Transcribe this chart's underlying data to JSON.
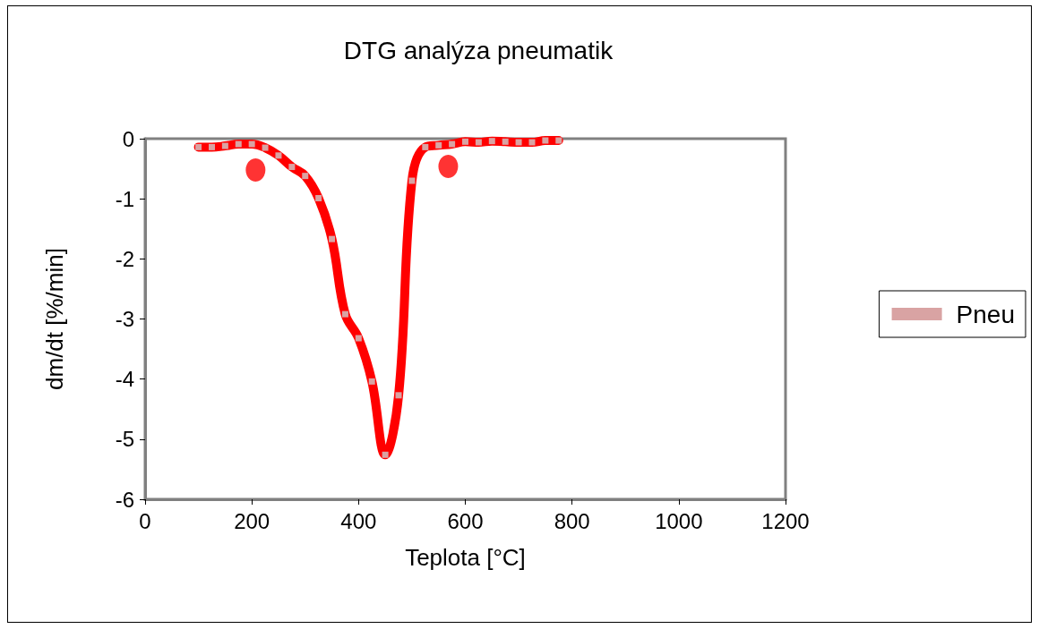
{
  "chart_data": {
    "type": "line",
    "title": "DTG analýza pneumatik",
    "xlabel": "Teplota [°C]",
    "ylabel": "dm/dt [%/min]",
    "xlim": [
      0,
      1200
    ],
    "xticks": [
      0,
      200,
      400,
      600,
      800,
      1000,
      1200
    ],
    "ylim": [
      -6,
      0
    ],
    "yticks": [
      -6,
      -5,
      -4,
      -3,
      -2,
      -1,
      0
    ],
    "grid": false,
    "legend": "right",
    "marker": "square",
    "series": [
      {
        "name": "Pneu",
        "color": "#ff0000",
        "x": [
          100,
          125,
          150,
          175,
          200,
          225,
          250,
          275,
          300,
          325,
          350,
          375,
          400,
          425,
          450,
          475,
          500,
          525,
          550,
          575,
          600,
          625,
          650,
          675,
          700,
          725,
          750,
          775
        ],
        "values": [
          -0.14,
          -0.14,
          -0.12,
          -0.09,
          -0.09,
          -0.15,
          -0.28,
          -0.47,
          -0.62,
          -0.99,
          -1.67,
          -2.92,
          -3.32,
          -4.04,
          -5.26,
          -4.27,
          -0.7,
          -0.14,
          -0.11,
          -0.09,
          -0.05,
          -0.06,
          -0.04,
          -0.05,
          -0.06,
          -0.06,
          -0.03,
          -0.03
        ]
      },
      {
        "type": "scatter",
        "marker": "circle",
        "color": "#ff0000",
        "x": [
          207,
          568
        ],
        "values": [
          -0.52,
          -0.46
        ]
      }
    ]
  }
}
